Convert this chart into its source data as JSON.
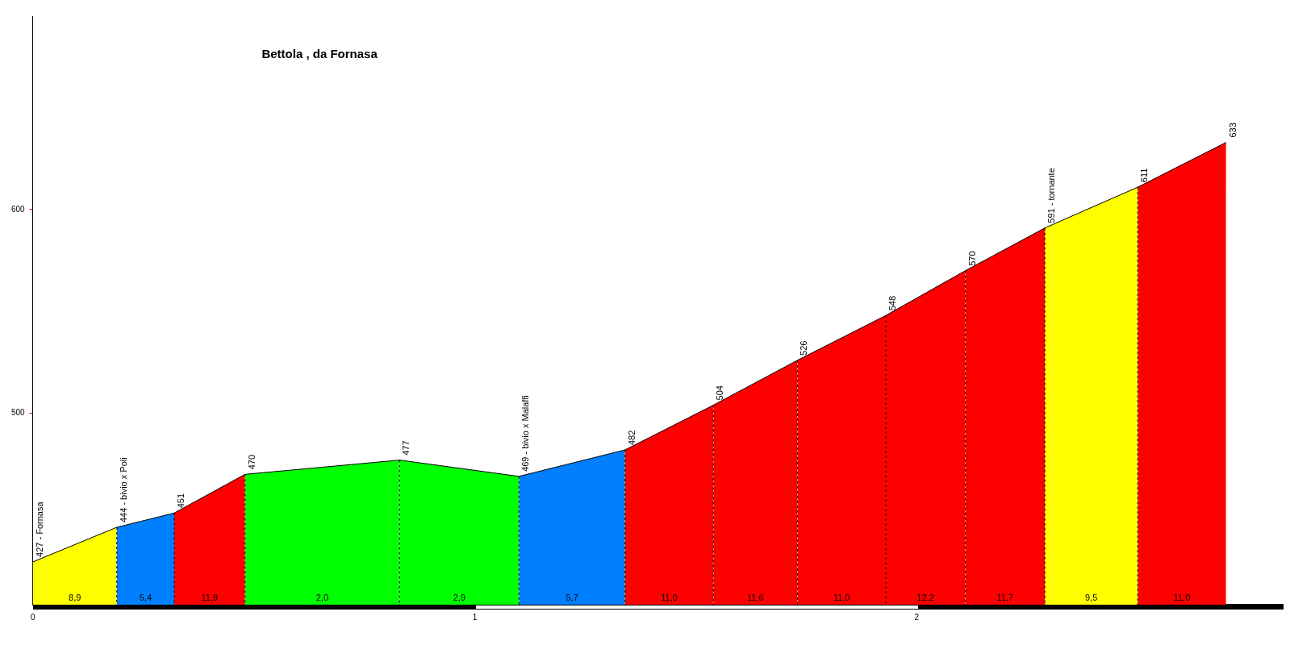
{
  "chart_data": {
    "type": "area",
    "title": "Bettola , da Fornasa",
    "xlim": [
      0,
      2.83
    ],
    "xticks": [
      0,
      1,
      2
    ],
    "ylim": [
      406,
      695
    ],
    "yticks": [
      500,
      600
    ],
    "marker": "none",
    "series": [
      {
        "color": "#ffff00",
        "x": [
          0,
          0.19
        ],
        "values": [
          427,
          444
        ],
        "value_labels": [
          "427 - Fornasa",
          "444 - bivio x Poli"
        ]
      },
      {
        "color": "#0080ff",
        "x": [
          0.19,
          0.32
        ],
        "values": [
          444,
          451
        ],
        "value_labels": [
          null,
          "451"
        ]
      },
      {
        "color": "#ff0000",
        "x": [
          0.32,
          0.48
        ],
        "values": [
          451,
          470
        ],
        "value_labels": [
          null,
          "470"
        ]
      },
      {
        "color": "#00ff00",
        "x": [
          0.48,
          0.83
        ],
        "values": [
          470,
          477
        ],
        "value_labels": [
          null,
          "477"
        ]
      },
      {
        "color": "#00ff00",
        "x": [
          0.83,
          1.1
        ],
        "values": [
          477,
          469
        ],
        "value_labels": [
          null,
          "469 - bivio x Malaffi"
        ]
      },
      {
        "color": "#0080ff",
        "x": [
          1.1,
          1.34
        ],
        "values": [
          469,
          482
        ],
        "value_labels": [
          null,
          "482"
        ]
      },
      {
        "color": "#ff0000",
        "x": [
          1.34,
          1.54
        ],
        "values": [
          482,
          504
        ],
        "value_labels": [
          null,
          "504"
        ]
      },
      {
        "color": "#ff0000",
        "x": [
          1.54,
          1.73
        ],
        "values": [
          504,
          526
        ],
        "value_labels": [
          null,
          "526"
        ]
      },
      {
        "color": "#ff0000",
        "x": [
          1.73,
          1.93
        ],
        "values": [
          526,
          548
        ],
        "value_labels": [
          null,
          "548"
        ]
      },
      {
        "color": "#ff0000",
        "x": [
          1.93,
          2.11
        ],
        "values": [
          548,
          570
        ],
        "value_labels": [
          null,
          "570"
        ]
      },
      {
        "color": "#ff0000",
        "x": [
          2.11,
          2.29
        ],
        "values": [
          570,
          591
        ],
        "value_labels": [
          null,
          "591 - tornante"
        ]
      },
      {
        "color": "#ffff00",
        "x": [
          2.29,
          2.5
        ],
        "values": [
          591,
          611
        ],
        "value_labels": [
          null,
          "611"
        ]
      },
      {
        "color": "#ff0000",
        "x": [
          2.5,
          2.7
        ],
        "values": [
          611,
          633
        ],
        "value_labels": [
          null,
          "633"
        ]
      }
    ],
    "annotations": [
      "8,9",
      "5,4",
      "11,9",
      "2,0",
      "2,9",
      "5,7",
      "11,0",
      "11,6",
      "11,0",
      "12,2",
      "11,7",
      "9,5",
      "11,0"
    ]
  }
}
